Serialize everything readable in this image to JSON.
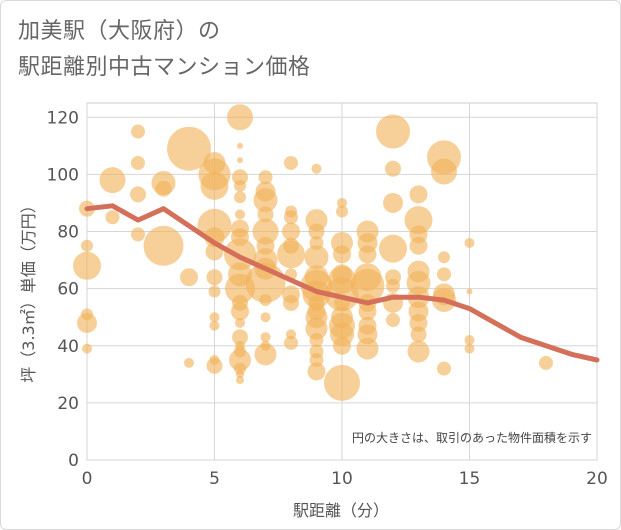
{
  "title_line1": "加美駅（大阪府）の",
  "title_line2": "駅距離別中古マンション価格",
  "chart_data": {
    "type": "scatter",
    "xlabel": "駅距離（分）",
    "ylabel": "坪（3.3㎡）単価（万円）",
    "xlim": [
      0,
      20
    ],
    "ylim": [
      0,
      125
    ],
    "xticks": [
      0,
      5,
      10,
      15,
      20
    ],
    "yticks": [
      0,
      20,
      40,
      60,
      80,
      100,
      120
    ],
    "grid": true,
    "note": "円の大きさは、取引のあった物件面積を示す",
    "bubble_color": "#f2b35b",
    "line_color": "#d4705a",
    "bubbles": [
      {
        "x": 0,
        "y": 88,
        "s": 8
      },
      {
        "x": 0,
        "y": 75,
        "s": 6
      },
      {
        "x": 0,
        "y": 68,
        "s": 14
      },
      {
        "x": 0,
        "y": 51,
        "s": 6
      },
      {
        "x": 0,
        "y": 48,
        "s": 10
      },
      {
        "x": 0,
        "y": 39,
        "s": 5
      },
      {
        "x": 1,
        "y": 98,
        "s": 13
      },
      {
        "x": 1,
        "y": 85,
        "s": 7
      },
      {
        "x": 2,
        "y": 115,
        "s": 7
      },
      {
        "x": 2,
        "y": 104,
        "s": 7
      },
      {
        "x": 2,
        "y": 93,
        "s": 8
      },
      {
        "x": 2,
        "y": 79,
        "s": 7
      },
      {
        "x": 3,
        "y": 97,
        "s": 12
      },
      {
        "x": 3,
        "y": 95,
        "s": 8
      },
      {
        "x": 3,
        "y": 75,
        "s": 20
      },
      {
        "x": 4,
        "y": 109,
        "s": 22
      },
      {
        "x": 4,
        "y": 64,
        "s": 9
      },
      {
        "x": 4,
        "y": 34,
        "s": 5
      },
      {
        "x": 5,
        "y": 104,
        "s": 11
      },
      {
        "x": 5,
        "y": 100,
        "s": 16
      },
      {
        "x": 5,
        "y": 96,
        "s": 14
      },
      {
        "x": 5,
        "y": 82,
        "s": 17
      },
      {
        "x": 5,
        "y": 78,
        "s": 10
      },
      {
        "x": 5,
        "y": 73,
        "s": 9
      },
      {
        "x": 5,
        "y": 64,
        "s": 8
      },
      {
        "x": 5,
        "y": 59,
        "s": 6
      },
      {
        "x": 5,
        "y": 50,
        "s": 5
      },
      {
        "x": 5,
        "y": 47,
        "s": 5
      },
      {
        "x": 5,
        "y": 35,
        "s": 5
      },
      {
        "x": 5,
        "y": 33,
        "s": 8
      },
      {
        "x": 6,
        "y": 120,
        "s": 13
      },
      {
        "x": 6,
        "y": 110,
        "s": 3
      },
      {
        "x": 6,
        "y": 105,
        "s": 3
      },
      {
        "x": 6,
        "y": 99,
        "s": 8
      },
      {
        "x": 6,
        "y": 96,
        "s": 6
      },
      {
        "x": 6,
        "y": 92,
        "s": 6
      },
      {
        "x": 6,
        "y": 86,
        "s": 5
      },
      {
        "x": 6,
        "y": 81,
        "s": 9
      },
      {
        "x": 6,
        "y": 78,
        "s": 9
      },
      {
        "x": 6,
        "y": 72,
        "s": 16
      },
      {
        "x": 6,
        "y": 65,
        "s": 12
      },
      {
        "x": 6,
        "y": 60,
        "s": 15
      },
      {
        "x": 6,
        "y": 55,
        "s": 8
      },
      {
        "x": 6,
        "y": 52,
        "s": 9
      },
      {
        "x": 6,
        "y": 48,
        "s": 5
      },
      {
        "x": 6,
        "y": 43,
        "s": 8
      },
      {
        "x": 6,
        "y": 40,
        "s": 5
      },
      {
        "x": 6,
        "y": 38,
        "s": 6
      },
      {
        "x": 6,
        "y": 35,
        "s": 11
      },
      {
        "x": 6,
        "y": 32,
        "s": 6
      },
      {
        "x": 6,
        "y": 30,
        "s": 4
      },
      {
        "x": 6,
        "y": 28,
        "s": 4
      },
      {
        "x": 7,
        "y": 99,
        "s": 7
      },
      {
        "x": 7,
        "y": 94,
        "s": 10
      },
      {
        "x": 7,
        "y": 91,
        "s": 12
      },
      {
        "x": 7,
        "y": 86,
        "s": 8
      },
      {
        "x": 7,
        "y": 80,
        "s": 13
      },
      {
        "x": 7,
        "y": 75,
        "s": 9
      },
      {
        "x": 7,
        "y": 70,
        "s": 12
      },
      {
        "x": 7,
        "y": 67,
        "s": 11
      },
      {
        "x": 7,
        "y": 62,
        "s": 20
      },
      {
        "x": 7,
        "y": 56,
        "s": 6
      },
      {
        "x": 7,
        "y": 50,
        "s": 5
      },
      {
        "x": 7,
        "y": 43,
        "s": 5
      },
      {
        "x": 7,
        "y": 40,
        "s": 5
      },
      {
        "x": 7,
        "y": 37,
        "s": 11
      },
      {
        "x": 8,
        "y": 104,
        "s": 7
      },
      {
        "x": 8,
        "y": 87,
        "s": 6
      },
      {
        "x": 8,
        "y": 85,
        "s": 7
      },
      {
        "x": 8,
        "y": 80,
        "s": 9
      },
      {
        "x": 8,
        "y": 75,
        "s": 8
      },
      {
        "x": 8,
        "y": 72,
        "s": 14
      },
      {
        "x": 8,
        "y": 65,
        "s": 6
      },
      {
        "x": 8,
        "y": 58,
        "s": 9
      },
      {
        "x": 8,
        "y": 55,
        "s": 8
      },
      {
        "x": 8,
        "y": 44,
        "s": 5
      },
      {
        "x": 8,
        "y": 41,
        "s": 7
      },
      {
        "x": 9,
        "y": 102,
        "s": 5
      },
      {
        "x": 9,
        "y": 84,
        "s": 11
      },
      {
        "x": 9,
        "y": 80,
        "s": 8
      },
      {
        "x": 9,
        "y": 76,
        "s": 7
      },
      {
        "x": 9,
        "y": 71,
        "s": 12
      },
      {
        "x": 9,
        "y": 64,
        "s": 12
      },
      {
        "x": 9,
        "y": 61,
        "s": 16
      },
      {
        "x": 9,
        "y": 58,
        "s": 14
      },
      {
        "x": 9,
        "y": 55,
        "s": 8
      },
      {
        "x": 9,
        "y": 52,
        "s": 9
      },
      {
        "x": 9,
        "y": 50,
        "s": 11
      },
      {
        "x": 9,
        "y": 46,
        "s": 11
      },
      {
        "x": 9,
        "y": 42,
        "s": 7
      },
      {
        "x": 9,
        "y": 38,
        "s": 7
      },
      {
        "x": 9,
        "y": 35,
        "s": 7
      },
      {
        "x": 9,
        "y": 31,
        "s": 9
      },
      {
        "x": 10,
        "y": 90,
        "s": 5
      },
      {
        "x": 10,
        "y": 87,
        "s": 6
      },
      {
        "x": 10,
        "y": 76,
        "s": 11
      },
      {
        "x": 10,
        "y": 72,
        "s": 9
      },
      {
        "x": 10,
        "y": 65,
        "s": 10
      },
      {
        "x": 10,
        "y": 63,
        "s": 14
      },
      {
        "x": 10,
        "y": 58,
        "s": 17
      },
      {
        "x": 10,
        "y": 55,
        "s": 8
      },
      {
        "x": 10,
        "y": 50,
        "s": 11
      },
      {
        "x": 10,
        "y": 47,
        "s": 13
      },
      {
        "x": 10,
        "y": 44,
        "s": 12
      },
      {
        "x": 10,
        "y": 40,
        "s": 9
      },
      {
        "x": 10,
        "y": 27,
        "s": 18
      },
      {
        "x": 11,
        "y": 80,
        "s": 11
      },
      {
        "x": 11,
        "y": 76,
        "s": 10
      },
      {
        "x": 11,
        "y": 72,
        "s": 9
      },
      {
        "x": 11,
        "y": 64,
        "s": 14
      },
      {
        "x": 11,
        "y": 61,
        "s": 17
      },
      {
        "x": 11,
        "y": 55,
        "s": 9
      },
      {
        "x": 11,
        "y": 52,
        "s": 9
      },
      {
        "x": 11,
        "y": 47,
        "s": 9
      },
      {
        "x": 11,
        "y": 44,
        "s": 10
      },
      {
        "x": 11,
        "y": 39,
        "s": 11
      },
      {
        "x": 12,
        "y": 115,
        "s": 17
      },
      {
        "x": 12,
        "y": 102,
        "s": 8
      },
      {
        "x": 12,
        "y": 90,
        "s": 10
      },
      {
        "x": 12,
        "y": 74,
        "s": 14
      },
      {
        "x": 12,
        "y": 64,
        "s": 8
      },
      {
        "x": 12,
        "y": 61,
        "s": 7
      },
      {
        "x": 12,
        "y": 55,
        "s": 10
      },
      {
        "x": 12,
        "y": 49,
        "s": 7
      },
      {
        "x": 13,
        "y": 93,
        "s": 9
      },
      {
        "x": 13,
        "y": 84,
        "s": 14
      },
      {
        "x": 13,
        "y": 79,
        "s": 9
      },
      {
        "x": 13,
        "y": 75,
        "s": 9
      },
      {
        "x": 13,
        "y": 66,
        "s": 11
      },
      {
        "x": 13,
        "y": 62,
        "s": 12
      },
      {
        "x": 13,
        "y": 57,
        "s": 11
      },
      {
        "x": 13,
        "y": 52,
        "s": 10
      },
      {
        "x": 13,
        "y": 48,
        "s": 9
      },
      {
        "x": 13,
        "y": 44,
        "s": 8
      },
      {
        "x": 13,
        "y": 38,
        "s": 11
      },
      {
        "x": 14,
        "y": 106,
        "s": 17
      },
      {
        "x": 14,
        "y": 101,
        "s": 13
      },
      {
        "x": 14,
        "y": 71,
        "s": 6
      },
      {
        "x": 14,
        "y": 65,
        "s": 7
      },
      {
        "x": 14,
        "y": 58,
        "s": 11
      },
      {
        "x": 14,
        "y": 56,
        "s": 12
      },
      {
        "x": 14,
        "y": 32,
        "s": 7
      },
      {
        "x": 15,
        "y": 76,
        "s": 5
      },
      {
        "x": 15,
        "y": 59,
        "s": 3
      },
      {
        "x": 15,
        "y": 42,
        "s": 5
      },
      {
        "x": 15,
        "y": 39,
        "s": 5
      },
      {
        "x": 18,
        "y": 34,
        "s": 7
      }
    ],
    "line": {
      "x": [
        0,
        1,
        2,
        3,
        4,
        5,
        6,
        7,
        8,
        9,
        10,
        11,
        12,
        13,
        14,
        15,
        16,
        17,
        18,
        19,
        20
      ],
      "y": [
        88,
        89,
        84,
        88,
        82,
        76,
        71,
        67,
        63,
        59,
        57,
        55,
        57,
        57,
        56,
        53,
        48,
        43,
        40,
        37,
        35
      ]
    }
  }
}
